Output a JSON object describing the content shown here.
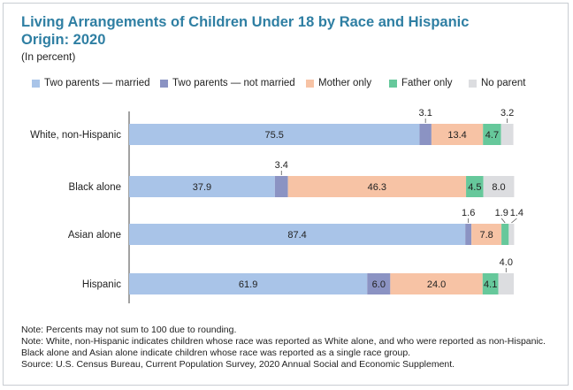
{
  "title": "Living Arrangements of Children Under 18 by Race and Hispanic Origin: 2020",
  "subtitle": "(In percent)",
  "colors": {
    "title": "#2f7fa3",
    "two_parents_married": "#a9c4e8",
    "two_parents_not_married": "#8b93c3",
    "mother_only": "#f7c3a5",
    "father_only": "#66c89b",
    "no_parent": "#dcdde0"
  },
  "legend": [
    {
      "label": "Two parents — married",
      "color": "#a9c4e8"
    },
    {
      "label": "Two parents — not married",
      "color": "#8b93c3"
    },
    {
      "label": "Mother only",
      "color": "#f7c3a5"
    },
    {
      "label": "Father only",
      "color": "#66c89b"
    },
    {
      "label": "No parent",
      "color": "#dcdde0"
    }
  ],
  "chart_data": {
    "type": "bar",
    "orientation": "horizontal",
    "stacked": true,
    "title": "Living Arrangements of Children Under 18 by Race and Hispanic Origin: 2020",
    "subtitle": "(In percent)",
    "categories": [
      "White, non-Hispanic",
      "Black alone",
      "Asian alone",
      "Hispanic"
    ],
    "series": [
      {
        "name": "Two parents — married",
        "values": [
          75.5,
          37.9,
          87.4,
          61.9
        ],
        "labels": [
          "75.5",
          "37.9",
          "87.4",
          "61.9"
        ]
      },
      {
        "name": "Two parents — not married",
        "values": [
          3.1,
          3.4,
          1.6,
          6.0
        ],
        "labels": [
          "3.1",
          "3.4",
          "1.6",
          "6.0"
        ]
      },
      {
        "name": "Mother only",
        "values": [
          13.4,
          46.3,
          7.8,
          24.0
        ],
        "labels": [
          "13.4",
          "46.3",
          "7.8",
          "24.0"
        ]
      },
      {
        "name": "Father only",
        "values": [
          4.7,
          4.5,
          1.9,
          4.1
        ],
        "labels": [
          "4.7",
          "4.5",
          "1.9",
          "4.1"
        ]
      },
      {
        "name": "No parent",
        "values": [
          3.2,
          8.0,
          1.4,
          4.0
        ],
        "labels": [
          "3.2",
          "8.0",
          "1.4",
          "4.0"
        ]
      }
    ],
    "xlim": [
      0,
      100
    ],
    "legend_position": "top",
    "grid": false
  },
  "notes": [
    "Note: Percents may not sum to 100 due to rounding.",
    "Note: White, non-Hispanic indicates children whose race was reported as White alone, and who were reported as non-Hispanic. Black alone and Asian alone indicate children whose race was reported as a single race group.",
    "Source: U.S. Census Bureau, Current Population Survey, 2020 Annual Social and Economic Supplement."
  ]
}
